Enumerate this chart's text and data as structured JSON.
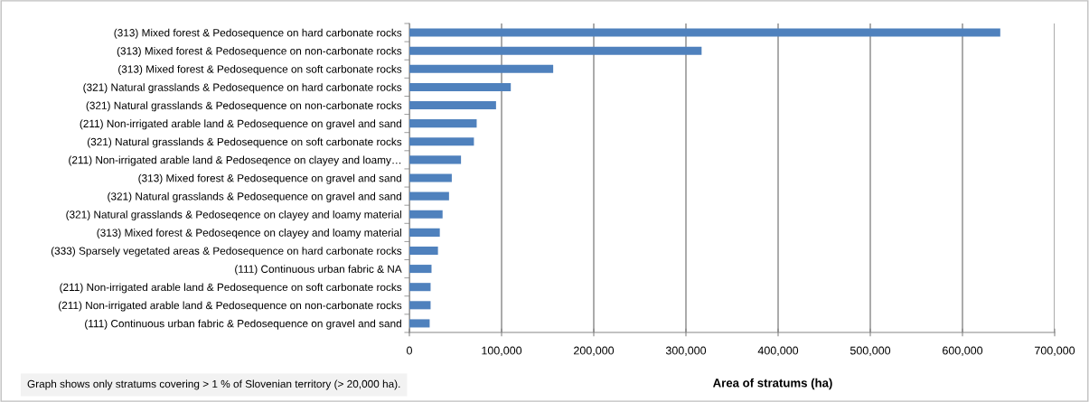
{
  "chart_data": {
    "type": "bar",
    "orientation": "horizontal",
    "categories": [
      "(313) Mixed forest & Pedosequence on hard carbonate rocks",
      "(313) Mixed forest & Pedosequence on non-carbonate rocks",
      "(313) Mixed forest & Pedosequence on soft carbonate rocks",
      "(321) Natural grasslands & Pedosequence on hard carbonate rocks",
      "(321) Natural grasslands & Pedosequence on non-carbonate rocks",
      "(211) Non-irrigated arable land & Pedosequence on gravel and sand",
      "(321) Natural grasslands & Pedosequence on soft carbonate rocks",
      "(211) Non-irrigated arable land & Pedoseqence on clayey and loamy…",
      "(313) Mixed forest & Pedosequence on gravel and sand",
      "(321) Natural grasslands & Pedosequence on gravel and sand",
      "(321) Natural grasslands & Pedoseqence on clayey and loamy material",
      "(313) Mixed forest & Pedoseqence on clayey and loamy material",
      "(333) Sparsely vegetated areas & Pedosequence on hard carbonate rocks",
      "(111) Continuous urban fabric & NA",
      "(211) Non-irrigated arable land & Pedosequence on soft carbonate rocks",
      "(211) Non-irrigated arable land & Pedosequence on non-carbonate rocks",
      "(111) Continuous urban fabric & Pedosequence on gravel and sand"
    ],
    "values": [
      641000,
      317000,
      156000,
      110000,
      94000,
      73000,
      70000,
      56000,
      46000,
      43000,
      36000,
      33000,
      31000,
      24000,
      23000,
      23000,
      22000
    ],
    "color": "#4f81bd",
    "xlabel": "Area of stratums (ha)",
    "xlim": [
      0,
      700000
    ],
    "xticks": [
      {
        "value": 0,
        "label": "0"
      },
      {
        "value": 100000,
        "label": "100,000"
      },
      {
        "value": 200000,
        "label": "200,000"
      },
      {
        "value": 300000,
        "label": "300,000"
      },
      {
        "value": 400000,
        "label": "400,000"
      },
      {
        "value": 500000,
        "label": "500,000"
      },
      {
        "value": 600000,
        "label": "600,000"
      },
      {
        "value": 700000,
        "label": "700,000"
      }
    ],
    "grid": "x",
    "annotations": [
      "Graph shows only stratums covering > 1 % of Slovenian territory (> 20,000 ha)."
    ]
  }
}
